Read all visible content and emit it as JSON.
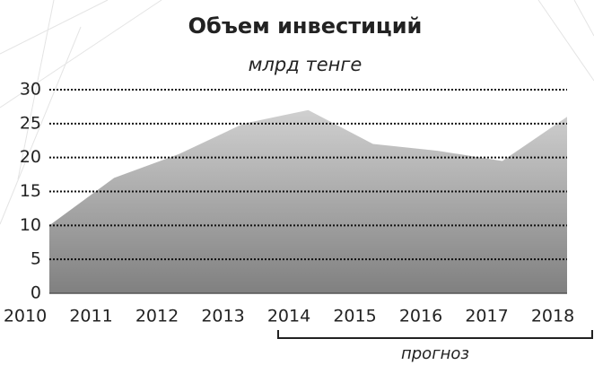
{
  "chart_data": {
    "type": "area",
    "title": "Объем инвестиций",
    "subtitle": "млрд тенге",
    "categories": [
      "2010",
      "2011",
      "2012",
      "2013",
      "2014",
      "2015",
      "2016",
      "2017",
      "2018"
    ],
    "values": [
      10,
      17,
      20.5,
      25,
      27,
      22,
      21,
      19.5,
      26
    ],
    "ylim": [
      0,
      30
    ],
    "yticks": [
      0,
      5,
      10,
      15,
      20,
      25,
      30
    ],
    "grid": true,
    "annotation": "прогноз"
  }
}
